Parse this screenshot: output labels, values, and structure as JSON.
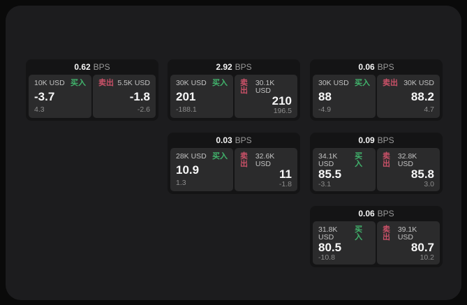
{
  "labels": {
    "bps": "BPS",
    "buy": "买入",
    "sell": "卖出"
  },
  "colors": {
    "page_bg": "#0a0a0a",
    "panel_bg": "#1c1c1e",
    "card_bg": "#141415",
    "cell_bg": "#2b2b2c",
    "buy_green": "#41b36c",
    "sell_red": "#ca5168",
    "primary_text": "#f5f5f5",
    "muted_text": "#9a9a9a"
  },
  "cards": [
    {
      "bps": "0.62",
      "buy": {
        "notional": "10K USD",
        "price": "-3.7",
        "delta": "4.3"
      },
      "sell": {
        "notional": "5.5K USD",
        "price": "-1.8",
        "delta": "-2.6"
      }
    },
    {
      "bps": "2.92",
      "buy": {
        "notional": "30K USD",
        "price": "201",
        "delta": "-188.1"
      },
      "sell": {
        "notional": "30.1K USD",
        "price": "210",
        "delta": "196.5"
      }
    },
    {
      "bps": "0.06",
      "buy": {
        "notional": "30K USD",
        "price": "88",
        "delta": "-4.9"
      },
      "sell": {
        "notional": "30K USD",
        "price": "88.2",
        "delta": "4.7"
      }
    },
    {
      "bps": "0.03",
      "buy": {
        "notional": "28K USD",
        "price": "10.9",
        "delta": "1.3"
      },
      "sell": {
        "notional": "32.6K USD",
        "price": "11",
        "delta": "-1.8"
      }
    },
    {
      "bps": "0.09",
      "buy": {
        "notional": "34.1K USD",
        "price": "85.5",
        "delta": "-3.1"
      },
      "sell": {
        "notional": "32.8K USD",
        "price": "85.8",
        "delta": "3.0"
      }
    },
    {
      "bps": "0.06",
      "buy": {
        "notional": "31.8K USD",
        "price": "80.5",
        "delta": "-10.8"
      },
      "sell": {
        "notional": "39.1K USD",
        "price": "80.7",
        "delta": "10.2"
      }
    }
  ]
}
